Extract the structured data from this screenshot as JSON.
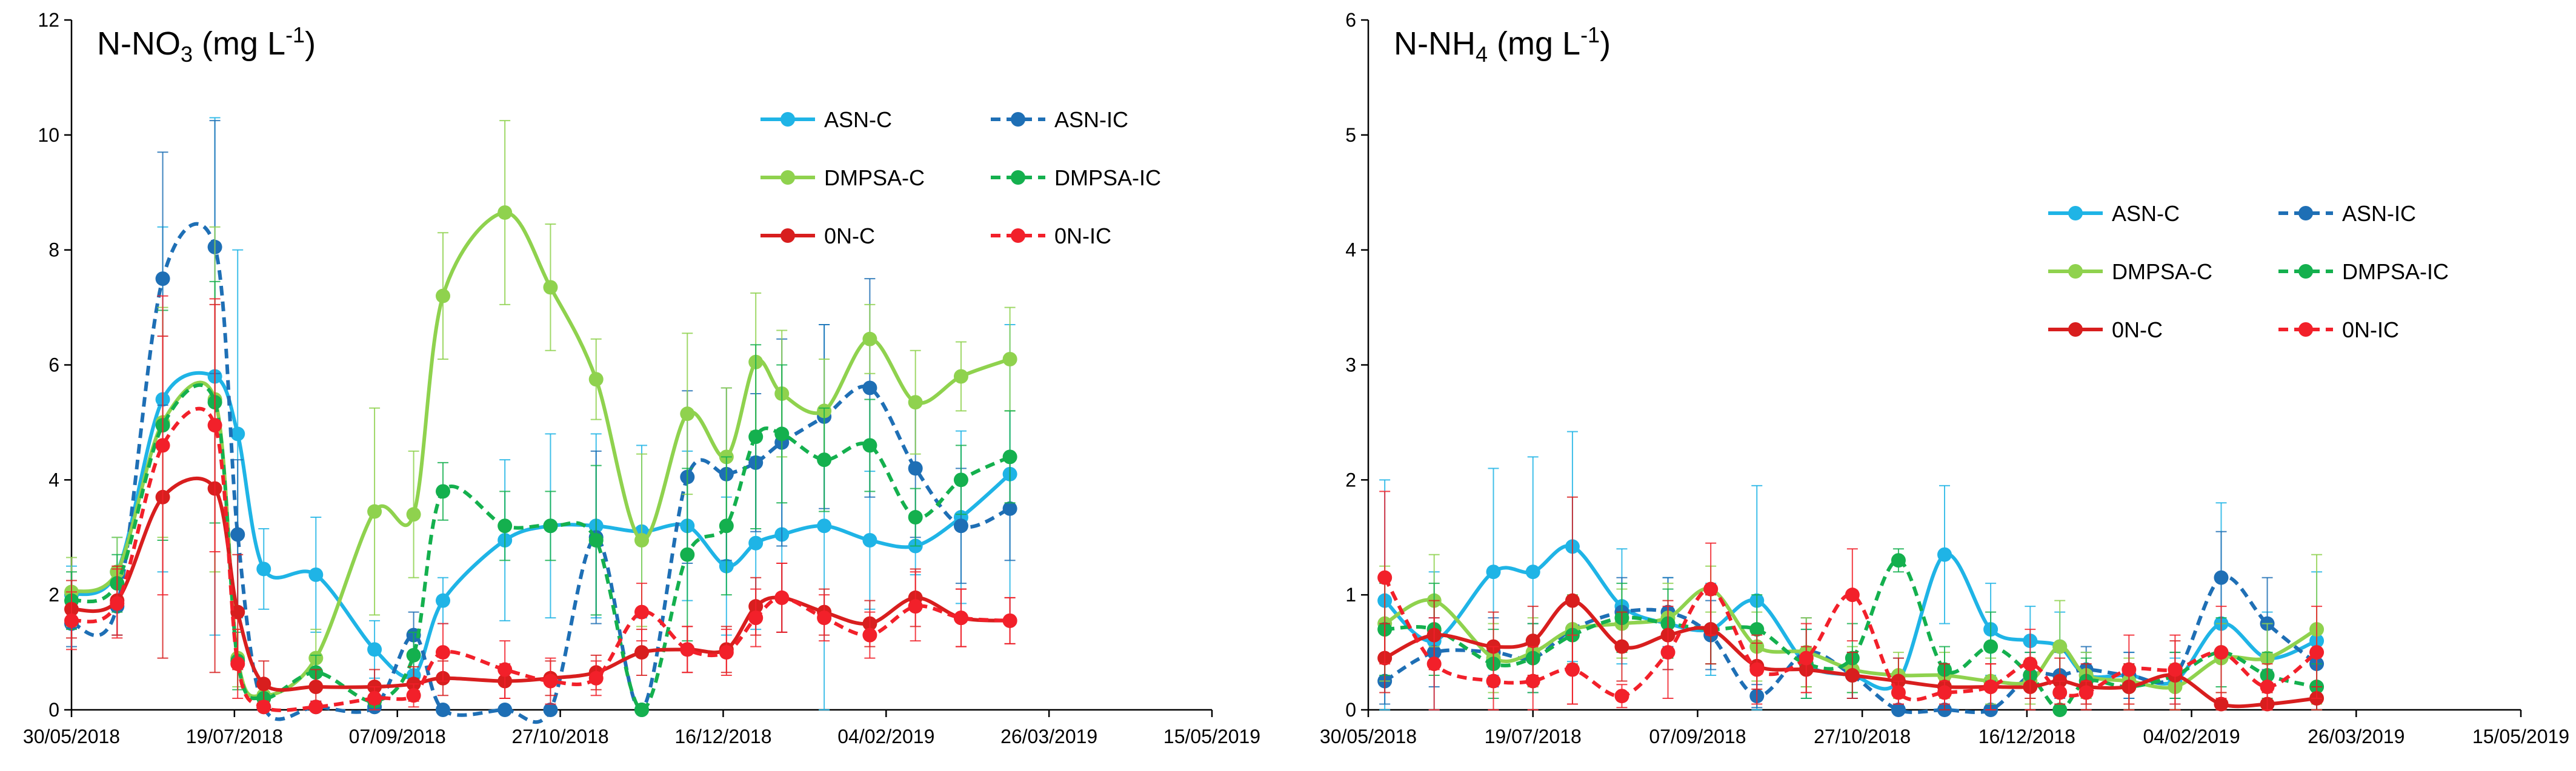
{
  "chart_data": [
    {
      "type": "line",
      "title": {
        "main": "N-NO",
        "sub": "3",
        "unit_prefix": " (mg L",
        "unit_sup": "-1",
        "unit_suffix": ")"
      },
      "title_text": "N-NO3 (mg L-1)",
      "xlabel": "",
      "ylabel": "",
      "ylim": [
        0,
        12
      ],
      "y_ticks": [
        0,
        2,
        4,
        6,
        8,
        10,
        12
      ],
      "x_ticks": [
        "30/05/2018",
        "19/07/2018",
        "07/09/2018",
        "27/10/2018",
        "16/12/2018",
        "04/02/2019",
        "26/03/2019",
        "15/05/2019"
      ],
      "x_tick_days": [
        0,
        50,
        100,
        150,
        200,
        250,
        300,
        350
      ],
      "x_range_days": [
        0,
        350
      ],
      "legend_position": "top-right",
      "series": [
        {
          "name": "ASN-C",
          "color": "#1FB4E6",
          "style": "solid",
          "days": [
            0,
            14,
            28,
            44,
            51,
            59,
            75,
            93,
            105,
            114,
            133,
            147,
            161,
            175,
            189,
            201,
            210,
            218,
            231,
            245,
            259,
            273,
            288
          ],
          "values": [
            2.0,
            2.4,
            5.4,
            5.8,
            4.8,
            2.45,
            2.35,
            1.05,
            0.6,
            1.9,
            2.95,
            3.2,
            3.2,
            3.1,
            3.2,
            2.5,
            2.9,
            3.05,
            3.2,
            2.95,
            2.85,
            3.35,
            4.1
          ],
          "errors": [
            0.5,
            0.6,
            3.0,
            4.5,
            3.2,
            0.7,
            1.0,
            0.5,
            0.4,
            0.4,
            1.4,
            1.6,
            1.6,
            1.5,
            1.3,
            1.2,
            1.5,
            1.7,
            3.5,
            1.2,
            0.5,
            1.5,
            2.6
          ]
        },
        {
          "name": "ASN-IC",
          "color": "#1E6FB5",
          "style": "dashed",
          "days": [
            0,
            14,
            28,
            44,
            51,
            59,
            75,
            93,
            105,
            114,
            133,
            147,
            161,
            175,
            189,
            201,
            210,
            218,
            231,
            245,
            259,
            273,
            288
          ],
          "values": [
            1.5,
            1.8,
            7.5,
            8.05,
            3.05,
            0.05,
            0.05,
            0.05,
            1.3,
            0.0,
            0.0,
            0.0,
            3.0,
            0.0,
            4.05,
            4.1,
            4.3,
            4.65,
            5.1,
            5.6,
            4.2,
            3.2,
            3.5
          ],
          "errors": [
            0.4,
            0.5,
            2.2,
            2.2,
            1.3,
            0.1,
            0.1,
            0.1,
            0.4,
            0.0,
            0.0,
            0.0,
            1.5,
            0.0,
            1.5,
            1.5,
            1.2,
            1.8,
            1.6,
            1.9,
            1.2,
            1.0,
            0.9
          ]
        },
        {
          "name": "DMPSA-C",
          "color": "#8FD24E",
          "style": "solid",
          "days": [
            0,
            14,
            28,
            44,
            51,
            59,
            75,
            93,
            105,
            114,
            133,
            147,
            161,
            175,
            189,
            201,
            210,
            218,
            231,
            245,
            259,
            273,
            288
          ],
          "values": [
            2.05,
            2.4,
            5.0,
            5.4,
            0.9,
            0.25,
            0.9,
            3.45,
            3.4,
            7.2,
            8.65,
            7.35,
            5.75,
            2.95,
            5.15,
            4.4,
            6.05,
            5.5,
            5.2,
            6.45,
            5.35,
            5.8,
            6.1
          ],
          "errors": [
            0.6,
            0.6,
            2.0,
            3.0,
            0.5,
            0.2,
            0.5,
            1.8,
            1.1,
            1.1,
            1.6,
            1.1,
            0.7,
            1.5,
            1.4,
            1.2,
            1.2,
            1.1,
            0.9,
            0.6,
            0.9,
            0.6,
            0.9
          ]
        },
        {
          "name": "DMPSA-IC",
          "color": "#14B04E",
          "style": "dashed",
          "days": [
            0,
            14,
            28,
            44,
            51,
            59,
            75,
            93,
            105,
            114,
            133,
            147,
            161,
            175,
            189,
            201,
            210,
            218,
            231,
            245,
            259,
            273,
            288
          ],
          "values": [
            1.9,
            2.2,
            4.95,
            5.35,
            0.85,
            0.2,
            0.65,
            0.15,
            0.95,
            3.8,
            3.2,
            3.2,
            2.95,
            0.0,
            2.7,
            3.2,
            4.75,
            4.8,
            4.35,
            4.6,
            3.35,
            4.0,
            4.4
          ],
          "errors": [
            0.5,
            0.5,
            2.0,
            2.1,
            0.5,
            0.2,
            0.3,
            0.1,
            0.4,
            0.5,
            0.6,
            0.6,
            1.3,
            0.0,
            1.5,
            1.2,
            1.6,
            1.2,
            0.9,
            0.8,
            0.5,
            0.6,
            0.8
          ]
        },
        {
          "name": "0N-C",
          "color": "#D81E1E",
          "style": "solid",
          "days": [
            0,
            14,
            28,
            44,
            51,
            59,
            75,
            93,
            105,
            114,
            133,
            147,
            161,
            175,
            189,
            201,
            210,
            218,
            231,
            245,
            259,
            273,
            288
          ],
          "values": [
            1.75,
            1.9,
            3.7,
            3.85,
            1.7,
            0.45,
            0.4,
            0.4,
            0.45,
            0.55,
            0.5,
            0.55,
            0.65,
            1.0,
            1.05,
            1.05,
            1.8,
            1.95,
            1.7,
            1.5,
            1.95,
            1.6,
            1.55
          ],
          "errors": [
            0.5,
            0.6,
            2.8,
            3.2,
            1.0,
            0.4,
            0.3,
            0.3,
            0.3,
            0.3,
            0.3,
            0.3,
            0.3,
            0.4,
            0.4,
            0.4,
            0.5,
            0.6,
            0.4,
            0.4,
            0.5,
            0.5,
            0.4
          ]
        },
        {
          "name": "0N-IC",
          "color": "#F2202A",
          "style": "dashed",
          "days": [
            0,
            14,
            28,
            44,
            51,
            59,
            75,
            93,
            105,
            114,
            133,
            147,
            161,
            175,
            189,
            201,
            210,
            218,
            231,
            245,
            259,
            273,
            288
          ],
          "values": [
            1.55,
            1.85,
            4.6,
            4.95,
            0.8,
            0.05,
            0.05,
            0.2,
            0.25,
            1.0,
            0.7,
            0.5,
            0.55,
            1.7,
            1.05,
            1.0,
            1.6,
            1.95,
            1.6,
            1.3,
            1.8,
            1.6,
            1.55
          ],
          "errors": [
            0.5,
            0.6,
            2.6,
            2.2,
            0.6,
            0.1,
            0.1,
            0.2,
            0.2,
            0.5,
            0.5,
            0.4,
            0.3,
            0.5,
            0.4,
            0.4,
            0.5,
            0.6,
            0.4,
            0.4,
            0.6,
            0.5,
            0.4
          ]
        }
      ]
    },
    {
      "type": "line",
      "title": {
        "main": "N-NH",
        "sub": "4",
        "unit_prefix": " (mg L",
        "unit_sup": "-1",
        "unit_suffix": ")"
      },
      "title_text": "N-NH4 (mg L-1)",
      "xlabel": "",
      "ylabel": "",
      "ylim": [
        0,
        6
      ],
      "y_ticks": [
        0,
        1,
        2,
        3,
        4,
        5,
        6
      ],
      "x_ticks": [
        "30/05/2018",
        "19/07/2018",
        "07/09/2018",
        "27/10/2018",
        "16/12/2018",
        "04/02/2019",
        "26/03/2019",
        "15/05/2019"
      ],
      "x_tick_days": [
        0,
        50,
        100,
        150,
        200,
        250,
        300,
        350
      ],
      "x_range_days": [
        0,
        350
      ],
      "legend_position": "top-right",
      "series": [
        {
          "name": "ASN-C",
          "color": "#1FB4E6",
          "style": "solid",
          "days": [
            5,
            20,
            38,
            50,
            62,
            77,
            91,
            104,
            118,
            133,
            147,
            161,
            175,
            189,
            201,
            210,
            218,
            231,
            245,
            259,
            273,
            288
          ],
          "values": [
            0.95,
            0.6,
            1.2,
            1.2,
            1.42,
            0.9,
            0.75,
            0.7,
            0.95,
            0.4,
            0.3,
            0.25,
            1.35,
            0.7,
            0.6,
            0.55,
            0.3,
            0.3,
            0.25,
            0.75,
            0.45,
            0.6
          ],
          "errors": [
            1.05,
            0.6,
            0.9,
            1.0,
            1.0,
            0.5,
            0.4,
            0.4,
            1.0,
            0.3,
            0.2,
            0.2,
            0.6,
            0.4,
            0.3,
            0.3,
            0.2,
            0.2,
            0.2,
            1.05,
            0.4,
            0.6
          ]
        },
        {
          "name": "ASN-IC",
          "color": "#1E6FB5",
          "style": "dashed",
          "days": [
            5,
            20,
            38,
            50,
            62,
            77,
            91,
            104,
            118,
            133,
            147,
            161,
            175,
            189,
            201,
            210,
            218,
            231,
            245,
            259,
            273,
            288
          ],
          "values": [
            0.25,
            0.5,
            0.5,
            0.45,
            0.7,
            0.85,
            0.85,
            0.65,
            0.12,
            0.5,
            0.3,
            0.0,
            0.0,
            0.0,
            0.3,
            0.3,
            0.35,
            0.3,
            0.3,
            1.15,
            0.75,
            0.4
          ],
          "errors": [
            0.2,
            0.3,
            0.3,
            0.3,
            0.3,
            0.3,
            0.3,
            0.3,
            0.1,
            0.3,
            0.2,
            0.0,
            0.0,
            0.0,
            0.2,
            0.2,
            0.2,
            0.2,
            0.2,
            0.4,
            0.4,
            0.3
          ]
        },
        {
          "name": "DMPSA-C",
          "color": "#8FD24E",
          "style": "solid",
          "days": [
            5,
            20,
            38,
            50,
            62,
            77,
            91,
            104,
            118,
            133,
            147,
            161,
            175,
            189,
            201,
            210,
            218,
            231,
            245,
            259,
            273,
            288
          ],
          "values": [
            0.75,
            0.95,
            0.45,
            0.5,
            0.7,
            0.75,
            0.8,
            1.05,
            0.55,
            0.5,
            0.35,
            0.3,
            0.3,
            0.25,
            0.25,
            0.55,
            0.3,
            0.25,
            0.2,
            0.45,
            0.45,
            0.7
          ],
          "errors": [
            0.5,
            0.4,
            0.3,
            0.3,
            0.3,
            0.3,
            0.3,
            0.2,
            0.3,
            0.3,
            0.2,
            0.2,
            0.2,
            0.2,
            0.2,
            0.4,
            0.2,
            0.2,
            0.2,
            0.3,
            0.3,
            0.65
          ]
        },
        {
          "name": "DMPSA-IC",
          "color": "#14B04E",
          "style": "dashed",
          "days": [
            5,
            20,
            38,
            50,
            62,
            77,
            91,
            104,
            118,
            133,
            147,
            161,
            175,
            189,
            201,
            210,
            218,
            231,
            245,
            259,
            273,
            288
          ],
          "values": [
            0.7,
            0.7,
            0.4,
            0.45,
            0.65,
            0.8,
            0.75,
            0.7,
            0.7,
            0.4,
            0.45,
            1.3,
            0.35,
            0.55,
            0.3,
            0.0,
            0.25,
            0.2,
            0.3,
            0.5,
            0.3,
            0.2
          ],
          "errors": [
            0.4,
            0.4,
            0.3,
            0.3,
            0.3,
            0.3,
            0.3,
            0.3,
            0.3,
            0.3,
            0.3,
            0.1,
            0.2,
            0.3,
            0.2,
            0.0,
            0.2,
            0.2,
            0.2,
            0.3,
            0.2,
            0.2
          ]
        },
        {
          "name": "0N-C",
          "color": "#D81E1E",
          "style": "solid",
          "days": [
            5,
            20,
            38,
            50,
            62,
            77,
            91,
            104,
            118,
            133,
            147,
            161,
            175,
            189,
            201,
            210,
            218,
            231,
            245,
            259,
            273,
            288
          ],
          "values": [
            0.45,
            0.65,
            0.55,
            0.6,
            0.95,
            0.55,
            0.65,
            0.7,
            0.38,
            0.35,
            0.3,
            0.25,
            0.2,
            0.2,
            0.2,
            0.25,
            0.2,
            0.2,
            0.3,
            0.05,
            0.05,
            0.1
          ],
          "errors": [
            0.3,
            0.3,
            0.3,
            0.3,
            0.9,
            0.3,
            0.3,
            0.3,
            0.2,
            0.2,
            0.2,
            0.2,
            0.2,
            0.2,
            0.2,
            0.2,
            0.2,
            0.2,
            0.3,
            0.1,
            0.1,
            0.1
          ]
        },
        {
          "name": "0N-IC",
          "color": "#F2202A",
          "style": "dashed",
          "days": [
            5,
            20,
            38,
            50,
            62,
            77,
            91,
            104,
            118,
            133,
            147,
            161,
            175,
            189,
            201,
            210,
            218,
            231,
            245,
            259,
            273,
            288
          ],
          "values": [
            1.15,
            0.4,
            0.25,
            0.25,
            0.35,
            0.12,
            0.5,
            1.05,
            0.35,
            0.45,
            1.0,
            0.15,
            0.15,
            0.2,
            0.4,
            0.15,
            0.15,
            0.35,
            0.35,
            0.5,
            0.2,
            0.5
          ],
          "errors": [
            0.75,
            0.4,
            0.3,
            0.3,
            0.3,
            0.1,
            0.4,
            0.4,
            0.3,
            0.3,
            0.4,
            0.1,
            0.1,
            0.2,
            0.3,
            0.1,
            0.1,
            0.3,
            0.3,
            0.4,
            0.2,
            0.4
          ]
        }
      ]
    }
  ]
}
